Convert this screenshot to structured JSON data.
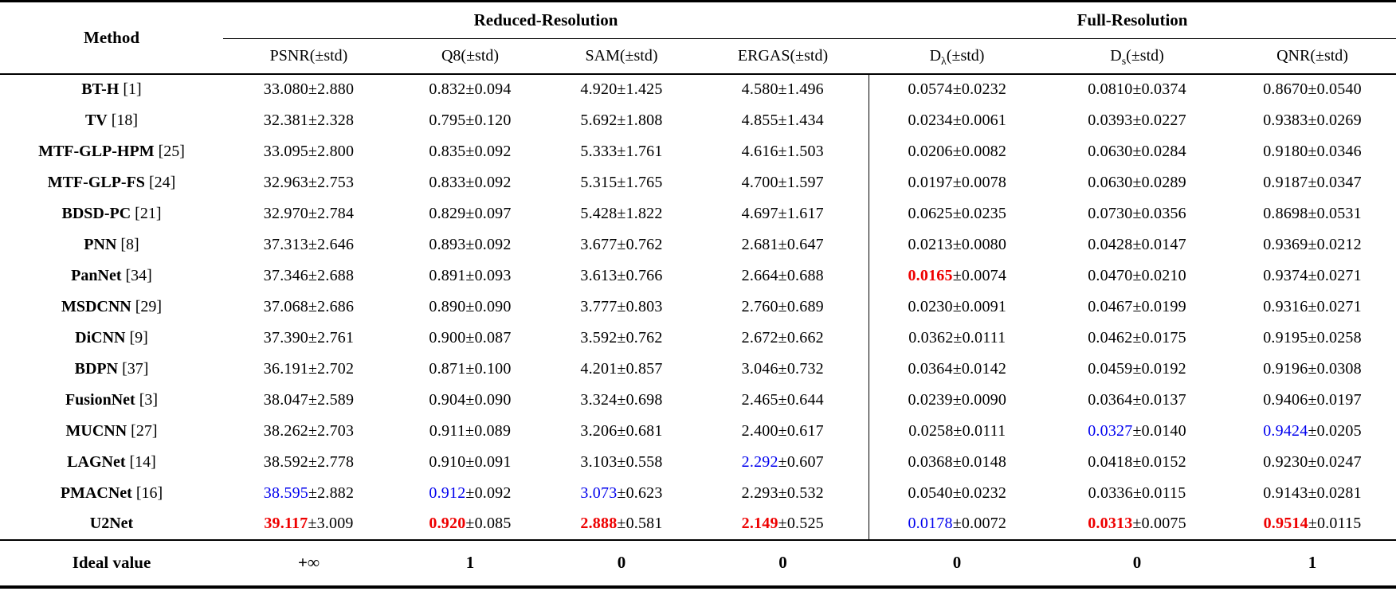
{
  "colors": {
    "red": "#ee0000",
    "blue": "#0000ee",
    "text": "#000000",
    "rule": "#000000",
    "background": "#ffffff"
  },
  "table": {
    "method_header": "Method",
    "groups": [
      {
        "label": "Reduced-Resolution",
        "span": 4
      },
      {
        "label": "Full-Resolution",
        "span": 3
      }
    ],
    "subheaders": [
      {
        "name": "psnr",
        "base": "PSNR",
        "sub": "",
        "suffix": "(±std)"
      },
      {
        "name": "q8",
        "base": "Q8",
        "sub": "",
        "suffix": "(±std)"
      },
      {
        "name": "sam",
        "base": "SAM",
        "sub": "",
        "suffix": "(±std)"
      },
      {
        "name": "ergas",
        "base": "ERGAS",
        "sub": "",
        "suffix": "(±std)"
      },
      {
        "name": "d-lambda",
        "base": "D",
        "sub": "λ",
        "suffix": "(±std)"
      },
      {
        "name": "d-s",
        "base": "D",
        "sub": "s",
        "suffix": "(±std)"
      },
      {
        "name": "qnr",
        "base": "QNR",
        "sub": "",
        "suffix": "(±std)"
      }
    ],
    "rows": [
      {
        "method": "BT-H",
        "ref": "[1]",
        "cells": [
          {
            "v": "33.080",
            "s": "±2.880"
          },
          {
            "v": "0.832",
            "s": "±0.094"
          },
          {
            "v": "4.920",
            "s": "±1.425"
          },
          {
            "v": "4.580",
            "s": "±1.496"
          },
          {
            "v": "0.0574",
            "s": "±0.0232"
          },
          {
            "v": "0.0810",
            "s": "±0.0374"
          },
          {
            "v": "0.8670",
            "s": "±0.0540"
          }
        ]
      },
      {
        "method": "TV",
        "ref": "[18]",
        "cells": [
          {
            "v": "32.381",
            "s": "±2.328"
          },
          {
            "v": "0.795",
            "s": "±0.120"
          },
          {
            "v": "5.692",
            "s": "±1.808"
          },
          {
            "v": "4.855",
            "s": "±1.434"
          },
          {
            "v": "0.0234",
            "s": "±0.0061"
          },
          {
            "v": "0.0393",
            "s": "±0.0227"
          },
          {
            "v": "0.9383",
            "s": "±0.0269"
          }
        ]
      },
      {
        "method": "MTF-GLP-HPM",
        "ref": "[25]",
        "cells": [
          {
            "v": "33.095",
            "s": "±2.800"
          },
          {
            "v": "0.835",
            "s": "±0.092"
          },
          {
            "v": "5.333",
            "s": "±1.761"
          },
          {
            "v": "4.616",
            "s": "±1.503"
          },
          {
            "v": "0.0206",
            "s": "±0.0082"
          },
          {
            "v": "0.0630",
            "s": "±0.0284"
          },
          {
            "v": "0.9180",
            "s": "±0.0346"
          }
        ]
      },
      {
        "method": "MTF-GLP-FS",
        "ref": "[24]",
        "cells": [
          {
            "v": "32.963",
            "s": "±2.753"
          },
          {
            "v": "0.833",
            "s": "±0.092"
          },
          {
            "v": "5.315",
            "s": "±1.765"
          },
          {
            "v": "4.700",
            "s": "±1.597"
          },
          {
            "v": "0.0197",
            "s": "±0.0078"
          },
          {
            "v": "0.0630",
            "s": "±0.0289"
          },
          {
            "v": "0.9187",
            "s": "±0.0347"
          }
        ]
      },
      {
        "method": "BDSD-PC",
        "ref": "[21]",
        "cells": [
          {
            "v": "32.970",
            "s": "±2.784"
          },
          {
            "v": "0.829",
            "s": "±0.097"
          },
          {
            "v": "5.428",
            "s": "±1.822"
          },
          {
            "v": "4.697",
            "s": "±1.617"
          },
          {
            "v": "0.0625",
            "s": "±0.0235"
          },
          {
            "v": "0.0730",
            "s": "±0.0356"
          },
          {
            "v": "0.8698",
            "s": "±0.0531"
          }
        ]
      },
      {
        "method": "PNN",
        "ref": "[8]",
        "cells": [
          {
            "v": "37.313",
            "s": "±2.646"
          },
          {
            "v": "0.893",
            "s": "±0.092"
          },
          {
            "v": "3.677",
            "s": "±0.762"
          },
          {
            "v": "2.681",
            "s": "±0.647"
          },
          {
            "v": "0.0213",
            "s": "±0.0080"
          },
          {
            "v": "0.0428",
            "s": "±0.0147"
          },
          {
            "v": "0.9369",
            "s": "±0.0212"
          }
        ]
      },
      {
        "method": "PanNet",
        "ref": "[34]",
        "cells": [
          {
            "v": "37.346",
            "s": "±2.688"
          },
          {
            "v": "0.891",
            "s": "±0.093"
          },
          {
            "v": "3.613",
            "s": "±0.766"
          },
          {
            "v": "2.664",
            "s": "±0.688"
          },
          {
            "v": "0.0165",
            "s": "±0.0074",
            "c": "red",
            "b": true
          },
          {
            "v": "0.0470",
            "s": "±0.0210"
          },
          {
            "v": "0.9374",
            "s": "±0.0271"
          }
        ]
      },
      {
        "method": "MSDCNN",
        "ref": "[29]",
        "cells": [
          {
            "v": "37.068",
            "s": "±2.686"
          },
          {
            "v": "0.890",
            "s": "±0.090"
          },
          {
            "v": "3.777",
            "s": "±0.803"
          },
          {
            "v": "2.760",
            "s": "±0.689"
          },
          {
            "v": "0.0230",
            "s": "±0.0091"
          },
          {
            "v": "0.0467",
            "s": "±0.0199"
          },
          {
            "v": "0.9316",
            "s": "±0.0271"
          }
        ]
      },
      {
        "method": "DiCNN",
        "ref": "[9]",
        "cells": [
          {
            "v": "37.390",
            "s": "±2.761"
          },
          {
            "v": "0.900",
            "s": "±0.087"
          },
          {
            "v": "3.592",
            "s": "±0.762"
          },
          {
            "v": "2.672",
            "s": "±0.662"
          },
          {
            "v": "0.0362",
            "s": "±0.0111"
          },
          {
            "v": "0.0462",
            "s": "±0.0175"
          },
          {
            "v": "0.9195",
            "s": "±0.0258"
          }
        ]
      },
      {
        "method": "BDPN",
        "ref": "[37]",
        "cells": [
          {
            "v": "36.191",
            "s": "±2.702"
          },
          {
            "v": "0.871",
            "s": "±0.100"
          },
          {
            "v": "4.201",
            "s": "±0.857"
          },
          {
            "v": "3.046",
            "s": "±0.732"
          },
          {
            "v": "0.0364",
            "s": "±0.0142"
          },
          {
            "v": "0.0459",
            "s": "±0.0192"
          },
          {
            "v": "0.9196",
            "s": "±0.0308"
          }
        ]
      },
      {
        "method": "FusionNet",
        "ref": "[3]",
        "cells": [
          {
            "v": "38.047",
            "s": "±2.589"
          },
          {
            "v": "0.904",
            "s": "±0.090"
          },
          {
            "v": "3.324",
            "s": "±0.698"
          },
          {
            "v": "2.465",
            "s": "±0.644"
          },
          {
            "v": "0.0239",
            "s": "±0.0090"
          },
          {
            "v": "0.0364",
            "s": "±0.0137"
          },
          {
            "v": "0.9406",
            "s": "±0.0197"
          }
        ]
      },
      {
        "method": "MUCNN",
        "ref": "[27]",
        "cells": [
          {
            "v": "38.262",
            "s": "±2.703"
          },
          {
            "v": "0.911",
            "s": "±0.089"
          },
          {
            "v": "3.206",
            "s": "±0.681"
          },
          {
            "v": "2.400",
            "s": "±0.617"
          },
          {
            "v": "0.0258",
            "s": "±0.0111"
          },
          {
            "v": "0.0327",
            "s": "±0.0140",
            "c": "blue"
          },
          {
            "v": "0.9424",
            "s": "±0.0205",
            "c": "blue"
          }
        ]
      },
      {
        "method": "LAGNet",
        "ref": "[14]",
        "cells": [
          {
            "v": "38.592",
            "s": "±2.778"
          },
          {
            "v": "0.910",
            "s": "±0.091"
          },
          {
            "v": "3.103",
            "s": "±0.558"
          },
          {
            "v": "2.292",
            "s": "±0.607",
            "c": "blue"
          },
          {
            "v": "0.0368",
            "s": "±0.0148"
          },
          {
            "v": "0.0418",
            "s": "±0.0152"
          },
          {
            "v": "0.9230",
            "s": "±0.0247"
          }
        ]
      },
      {
        "method": "PMACNet",
        "ref": "[16]",
        "cells": [
          {
            "v": "38.595",
            "s": "±2.882",
            "c": "blue"
          },
          {
            "v": "0.912",
            "s": "±0.092",
            "c": "blue"
          },
          {
            "v": "3.073",
            "s": "±0.623",
            "c": "blue"
          },
          {
            "v": "2.293",
            "s": "±0.532"
          },
          {
            "v": "0.0540",
            "s": "±0.0232"
          },
          {
            "v": "0.0336",
            "s": "±0.0115"
          },
          {
            "v": "0.9143",
            "s": "±0.0281"
          }
        ]
      },
      {
        "method": "U2Net",
        "ref": "",
        "cells": [
          {
            "v": "39.117",
            "s": "±3.009",
            "c": "red",
            "b": true
          },
          {
            "v": "0.920",
            "s": "±0.085",
            "c": "red",
            "b": true
          },
          {
            "v": "2.888",
            "s": "±0.581",
            "c": "red",
            "b": true
          },
          {
            "v": "2.149",
            "s": "±0.525",
            "c": "red",
            "b": true
          },
          {
            "v": "0.0178",
            "s": "±0.0072",
            "c": "blue"
          },
          {
            "v": "0.0313",
            "s": "±0.0075",
            "c": "red",
            "b": true
          },
          {
            "v": "0.9514",
            "s": "±0.0115",
            "c": "red",
            "b": true
          }
        ]
      }
    ],
    "ideal": {
      "label": "Ideal value",
      "values": [
        "+∞",
        "1",
        "0",
        "0",
        "0",
        "0",
        "1"
      ]
    }
  }
}
